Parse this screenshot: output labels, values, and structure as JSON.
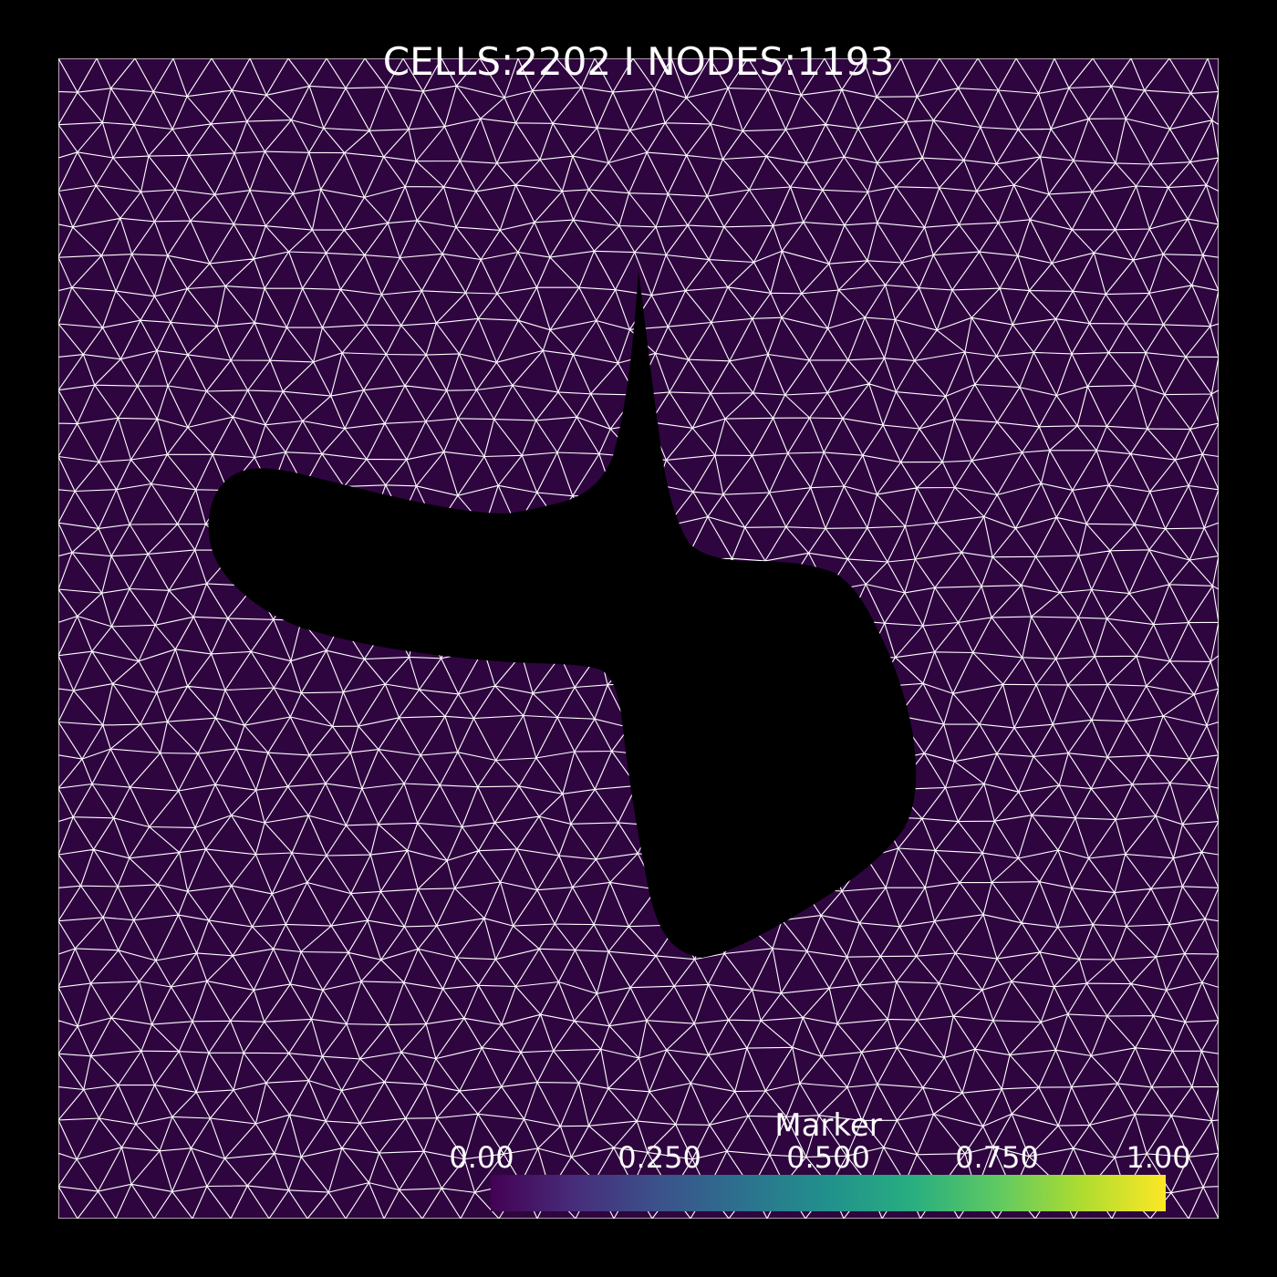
{
  "header": {
    "stats_text": "CELLS:2202   I NODES:1193"
  },
  "mesh": {
    "cells": 2202,
    "nodes": 1193,
    "fill_color": "#2f0540",
    "edge_color": "#ffffff",
    "hole_color": "#000000"
  },
  "colorbar": {
    "title": "Marker",
    "colormap": "viridis",
    "range": [
      0,
      1
    ],
    "ticks": [
      "0.00",
      "0.250",
      "0.500",
      "0.750",
      "1.00"
    ],
    "stops": [
      "#440154",
      "#472d7b",
      "#3b528b",
      "#2c728e",
      "#21918c",
      "#28ae80",
      "#5ec962",
      "#addc30",
      "#fde725"
    ]
  }
}
